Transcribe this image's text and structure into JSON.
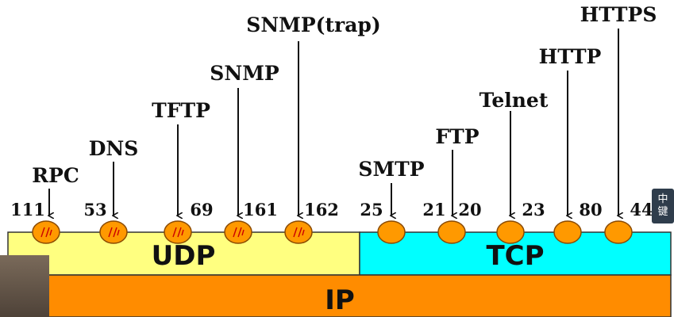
{
  "colors": {
    "udp_fill": "#ffff80",
    "tcp_fill": "#00ffff",
    "ip_fill": "#ff8c00",
    "port_circle": "#ff9900",
    "port_mark": "#cc0000",
    "ime_bg": "#2f3d4c"
  },
  "layers": {
    "udp": "UDP",
    "tcp": "TCP",
    "ip": "IP"
  },
  "services": [
    {
      "name": "RPC",
      "port": "111",
      "layer": "udp",
      "marked": true
    },
    {
      "name": "DNS",
      "port": "53",
      "layer": "udp",
      "marked": true
    },
    {
      "name": "TFTP",
      "port": "69",
      "layer": "udp",
      "marked": true
    },
    {
      "name": "SNMP",
      "port": "161",
      "layer": "udp",
      "marked": true
    },
    {
      "name": "SNMP(trap)",
      "port": "162",
      "layer": "udp",
      "marked": true
    },
    {
      "name": "SMTP",
      "port": "25",
      "layer": "tcp",
      "marked": false
    },
    {
      "name": "FTP",
      "port": "21",
      "layer": "tcp",
      "marked": false
    },
    {
      "name": "FTP",
      "port": "20",
      "layer": "tcp",
      "marked": false
    },
    {
      "name": "Telnet",
      "port": "23",
      "layer": "tcp",
      "marked": false
    },
    {
      "name": "HTTP",
      "port": "80",
      "layer": "tcp",
      "marked": false
    },
    {
      "name": "HTTPS",
      "port": "44",
      "layer": "tcp",
      "marked": false
    }
  ],
  "ime": {
    "line1": "中",
    "line2": "键"
  }
}
